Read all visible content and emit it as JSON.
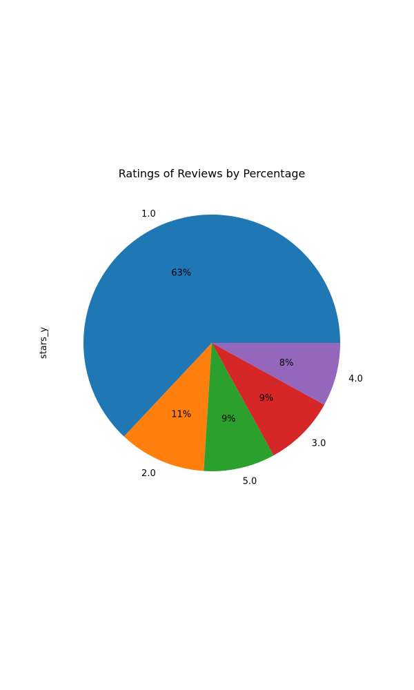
{
  "chart_data": {
    "type": "pie",
    "title": "Ratings of Reviews by Percentage",
    "ylabel": "stars_y",
    "start_angle_deg": 0,
    "direction": "counterclockwise",
    "slices": [
      {
        "label": "1.0",
        "value": 63,
        "display": "63%",
        "color": "#1f77b4"
      },
      {
        "label": "2.0",
        "value": 11,
        "display": "11%",
        "color": "#ff7f0e"
      },
      {
        "label": "5.0",
        "value": 9,
        "display": "9%",
        "color": "#2ca02c"
      },
      {
        "label": "3.0",
        "value": 9,
        "display": "9%",
        "color": "#d62728"
      },
      {
        "label": "4.0",
        "value": 8,
        "display": "8%",
        "color": "#9467bd"
      }
    ]
  }
}
